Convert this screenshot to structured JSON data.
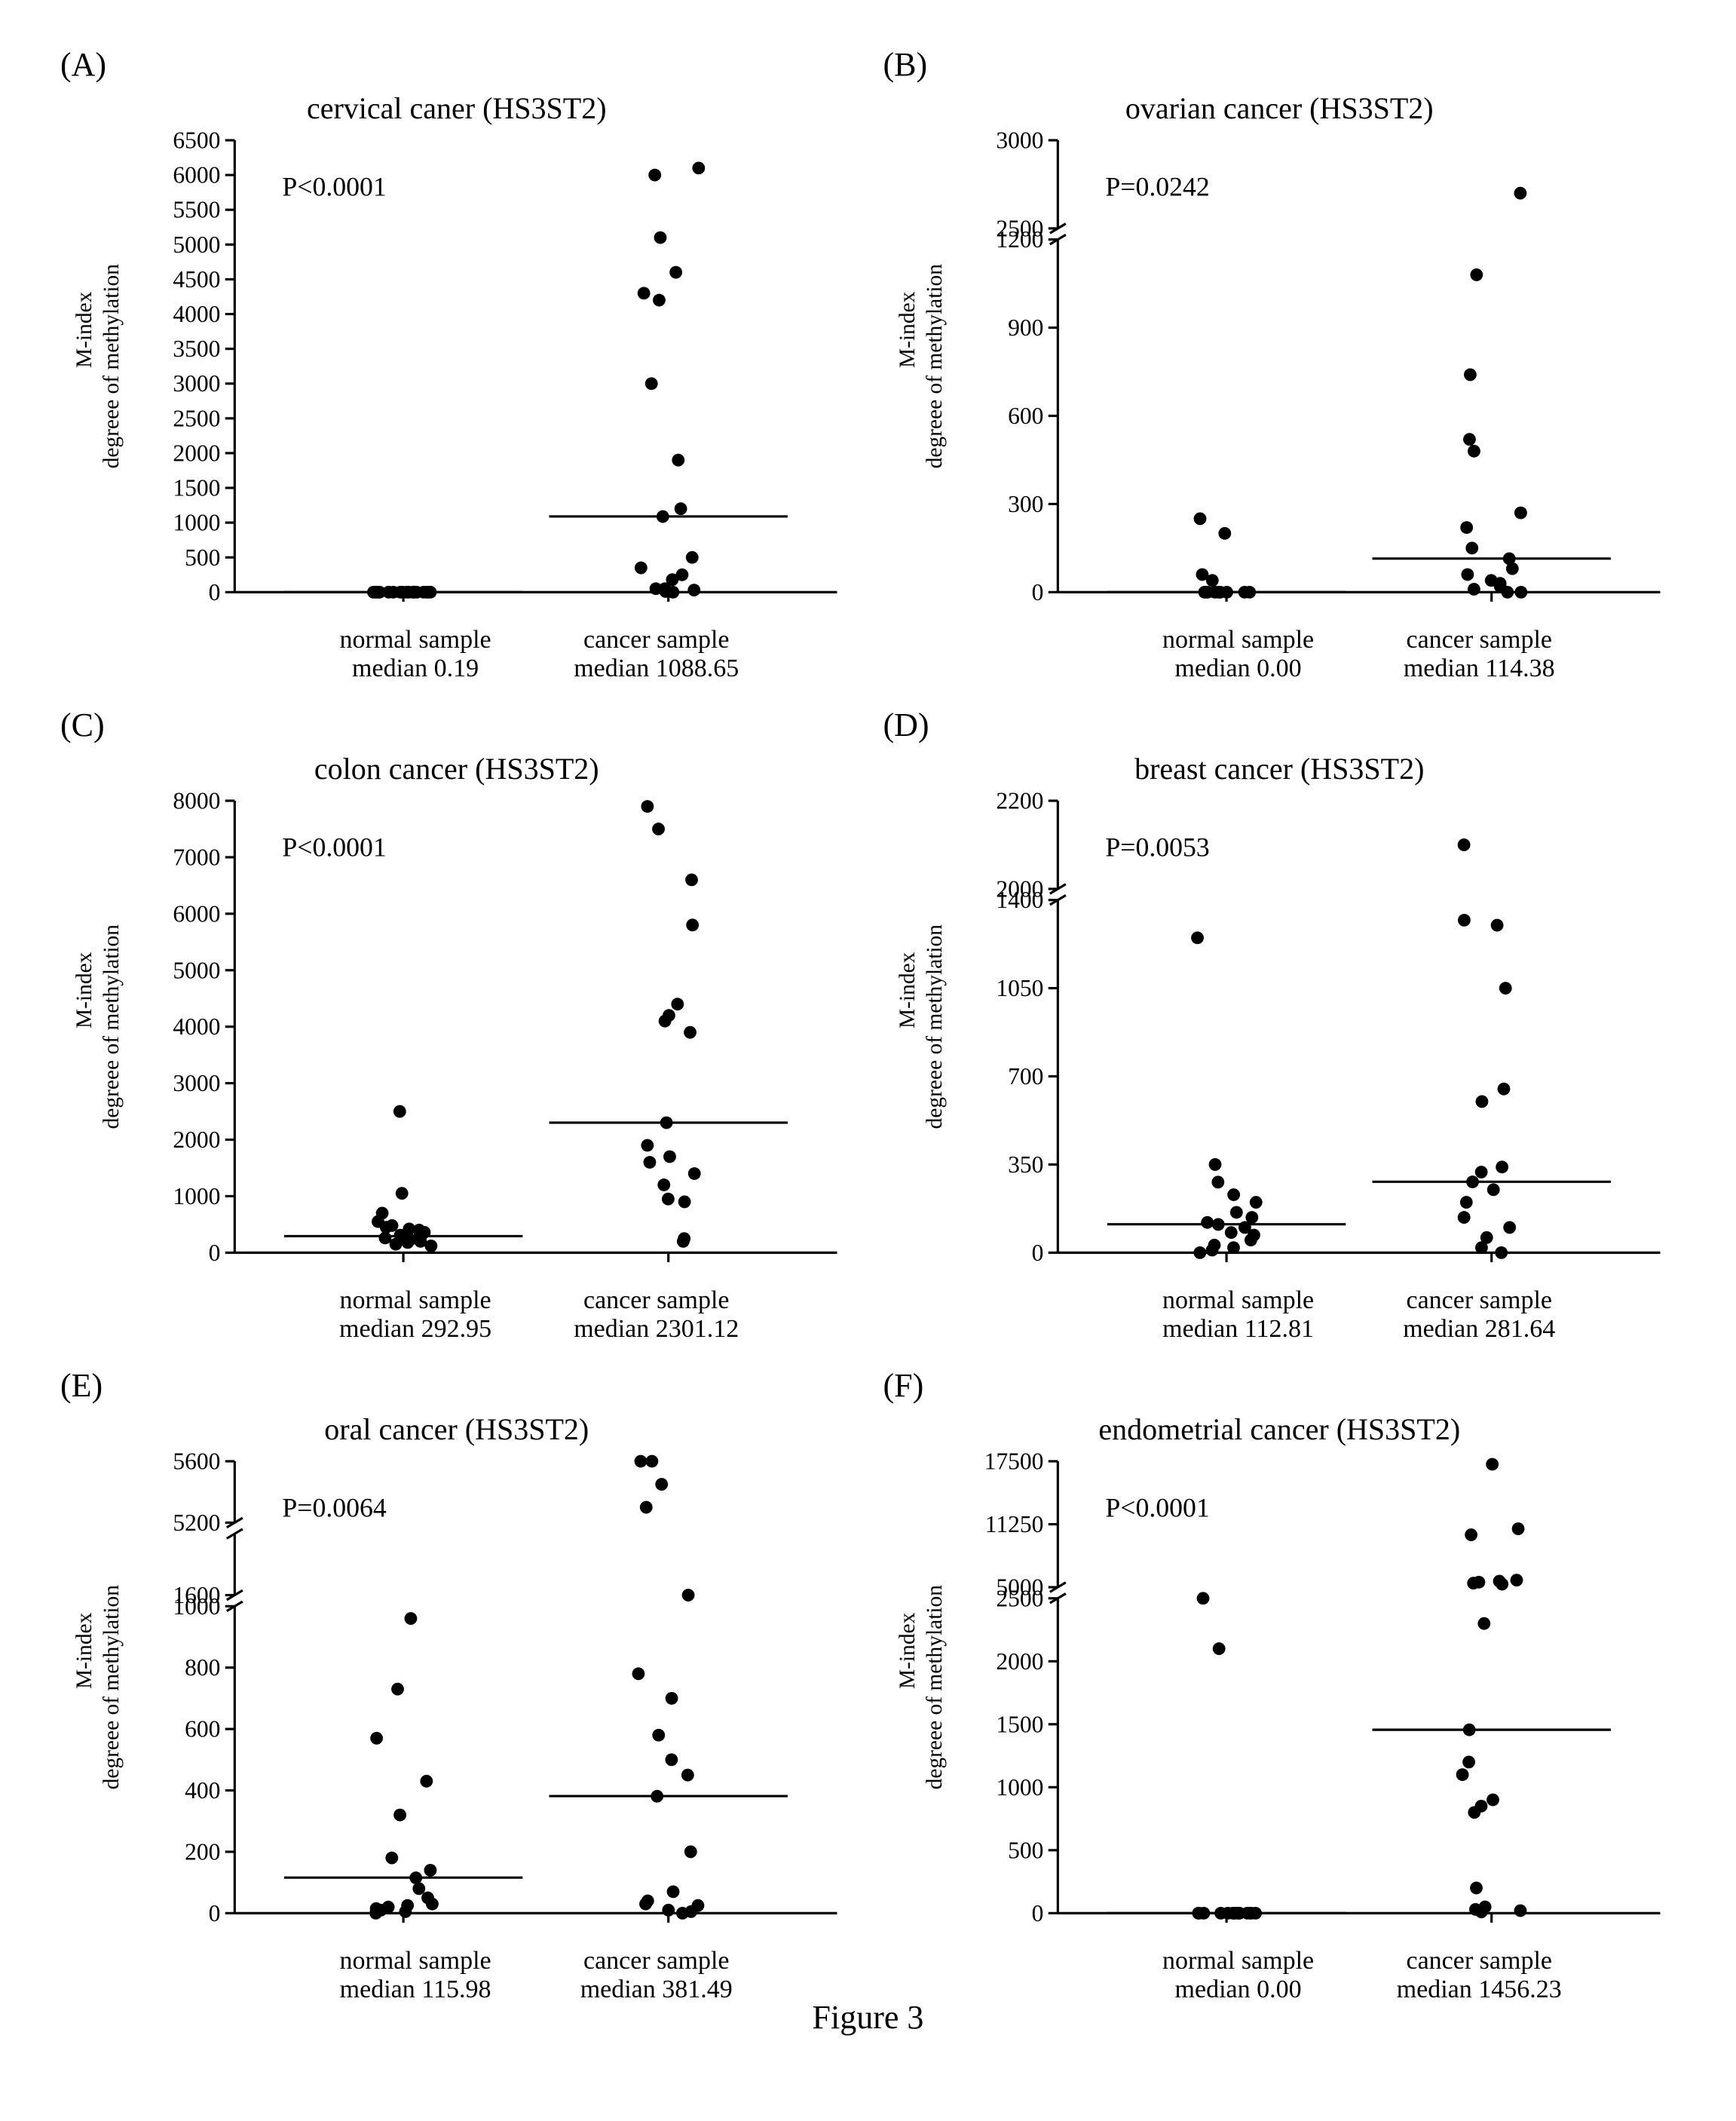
{
  "figure_caption": "Figure 3",
  "style": {
    "axis_color": "#000000",
    "axis_width": 3,
    "tick_length": 12,
    "point_radius": 8,
    "point_fill": "#000000",
    "median_bar_width": 2,
    "tick_font_size": 30,
    "ylabel_font_size": 28,
    "p_font_size": 34,
    "title_font_size": 40,
    "xlabel_font_size": 34,
    "letter_font_size": 44,
    "jitter_amplitude": 0.28,
    "background": "#ffffff"
  },
  "panels": [
    {
      "letter": "(A)",
      "title": "cervical caner (HS3ST2)",
      "p_text": "P<0.0001",
      "ylabel_1": "M-index",
      "ylabel_2": "degreee of methylation",
      "normal_label": "normal sample",
      "normal_median_label": "median 0.19",
      "cancer_label": "cancer sample",
      "cancer_median_label": "median 1088.65",
      "normal_median": 0.19,
      "cancer_median": 1088.65,
      "y_ticks": [
        0,
        500,
        1000,
        1500,
        2000,
        2500,
        3000,
        3500,
        4000,
        4500,
        5000,
        5500,
        6000,
        6500
      ],
      "y_break": null,
      "y_breaks": null,
      "normal_points": [
        0,
        0,
        0,
        0,
        0,
        0,
        0,
        0,
        0,
        0,
        0,
        0,
        0,
        0,
        0.19,
        0.19,
        0.3,
        0.4,
        0.5,
        0.5
      ],
      "cancer_points": [
        0,
        10,
        30,
        50,
        50,
        180,
        250,
        350,
        500,
        1088,
        1200,
        1900,
        3000,
        4200,
        4300,
        4600,
        5100,
        6000,
        6100
      ]
    },
    {
      "letter": "(B)",
      "title": "ovarian cancer (HS3ST2)",
      "p_text": "P=0.0242",
      "ylabel_1": "M-index",
      "ylabel_2": "degreee of methylation",
      "normal_label": "normal sample",
      "normal_median_label": "median 0.00",
      "cancer_label": "cancer sample",
      "cancer_median_label": "median 114.38",
      "normal_median": 0.0,
      "cancer_median": 114.38,
      "y_ticks": [
        0,
        300,
        600,
        900,
        1200,
        2500,
        3000
      ],
      "y_break": {
        "from": 1200,
        "to": 2500
      },
      "y_breaks": null,
      "normal_points": [
        0,
        0,
        0,
        0,
        0,
        0,
        0,
        0,
        0,
        0,
        0,
        40,
        60,
        200,
        250
      ],
      "cancer_points": [
        0,
        0,
        10,
        20,
        30,
        40,
        60,
        80,
        114,
        150,
        220,
        270,
        480,
        520,
        740,
        1080,
        2700
      ]
    },
    {
      "letter": "(C)",
      "title": "colon cancer (HS3ST2)",
      "p_text": "P<0.0001",
      "ylabel_1": "M-index",
      "ylabel_2": "degreee of methylation",
      "normal_label": "normal sample",
      "normal_median_label": "median 292.95",
      "cancer_label": "cancer sample",
      "cancer_median_label": "median 2301.12",
      "normal_median": 292.95,
      "cancer_median": 2301.12,
      "y_ticks": [
        0,
        1000,
        2000,
        3000,
        4000,
        5000,
        6000,
        7000,
        8000
      ],
      "y_break": null,
      "y_breaks": null,
      "normal_points": [
        120,
        150,
        180,
        200,
        230,
        260,
        292,
        310,
        330,
        360,
        400,
        420,
        450,
        480,
        550,
        700,
        1050,
        2500
      ],
      "cancer_points": [
        200,
        250,
        900,
        950,
        1200,
        1400,
        1600,
        1700,
        1900,
        2301,
        3900,
        4100,
        4200,
        4400,
        5800,
        6600,
        7500,
        7900
      ]
    },
    {
      "letter": "(D)",
      "title": "breast cancer (HS3ST2)",
      "p_text": "P=0.0053",
      "ylabel_1": "M-index",
      "ylabel_2": "degreee of methylation",
      "normal_label": "normal sample",
      "normal_median_label": "median 112.81",
      "cancer_label": "cancer sample",
      "cancer_median_label": "median 281.64",
      "normal_median": 112.81,
      "cancer_median": 281.64,
      "y_ticks": [
        0,
        350,
        700,
        1050,
        1400,
        2000,
        2200
      ],
      "y_break": {
        "from": 1400,
        "to": 2000
      },
      "y_breaks": null,
      "normal_points": [
        0,
        10,
        20,
        30,
        50,
        70,
        80,
        100,
        112,
        120,
        140,
        160,
        200,
        230,
        280,
        350,
        1250
      ],
      "cancer_points": [
        0,
        20,
        60,
        100,
        140,
        200,
        250,
        281,
        320,
        340,
        600,
        650,
        1050,
        1300,
        1320,
        2100
      ]
    },
    {
      "letter": "(E)",
      "title": "oral cancer (HS3ST2)",
      "p_text": "P=0.0064",
      "ylabel_1": "M-index",
      "ylabel_2": "degreee of methylation",
      "normal_label": "normal sample",
      "normal_median_label": "median 115.98",
      "cancer_label": "cancer sample",
      "cancer_median_label": "median 381.49",
      "normal_median": 115.98,
      "cancer_median": 381.49,
      "y_ticks": [
        0,
        200,
        400,
        600,
        800,
        1000,
        1600,
        5200,
        5600
      ],
      "y_break": null,
      "y_breaks": [
        {
          "from": 1000,
          "to": 1600
        },
        {
          "from": 1600,
          "to": 5200
        }
      ],
      "normal_points": [
        0,
        5,
        10,
        15,
        20,
        25,
        30,
        50,
        80,
        115,
        140,
        180,
        320,
        430,
        570,
        730,
        960
      ],
      "cancer_points": [
        0,
        5,
        10,
        25,
        30,
        40,
        70,
        200,
        381,
        450,
        500,
        580,
        700,
        780,
        1600,
        5300,
        5450,
        5650,
        5700
      ]
    },
    {
      "letter": "(F)",
      "title": "endometrial cancer (HS3ST2)",
      "p_text": "P<0.0001",
      "ylabel_1": "M-index",
      "ylabel_2": "degreee of methylation",
      "normal_label": "normal sample",
      "normal_median_label": "median 0.00",
      "cancer_label": "cancer sample",
      "cancer_median_label": "median 1456.23",
      "normal_median": 0.0,
      "cancer_median": 1456.23,
      "y_ticks": [
        0,
        500,
        1000,
        1500,
        2000,
        2500,
        5000,
        11250,
        17500
      ],
      "y_break": {
        "from": 2500,
        "to": 5000
      },
      "y_breaks": null,
      "normal_points": [
        0,
        0,
        0,
        0,
        0,
        0,
        0,
        0,
        0,
        0,
        0,
        0,
        0,
        0,
        0,
        2100,
        2500
      ],
      "cancer_points": [
        10,
        20,
        30,
        50,
        200,
        800,
        850,
        900,
        1100,
        1200,
        1456,
        2300,
        5300,
        5400,
        5500,
        5600,
        5700,
        10200,
        10800,
        17200
      ]
    }
  ]
}
